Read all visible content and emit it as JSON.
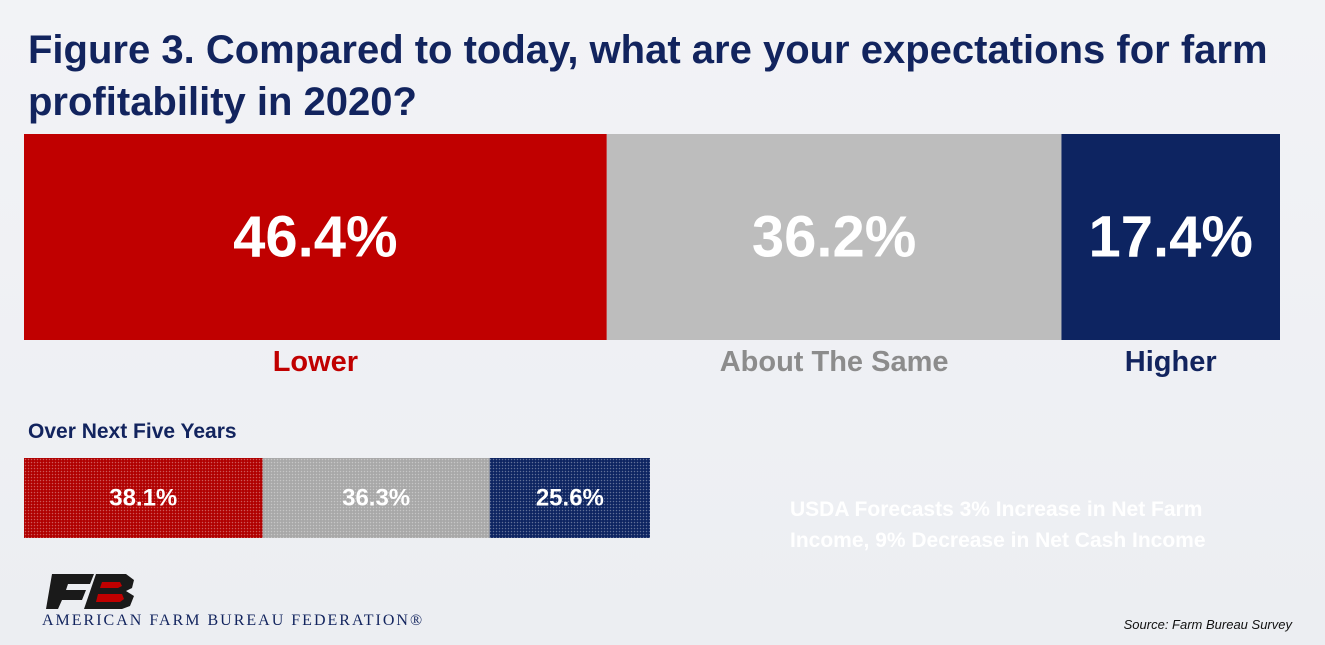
{
  "title": "Figure 3. Compared to today, what are your expectations for farm profitability in 2020?",
  "chart_data": [
    {
      "type": "bar",
      "stacked": true,
      "orientation": "horizontal",
      "title": "Figure 3. Compared to today, what are your expectations for farm profitability in 2020?",
      "categories": [
        "Lower",
        "About The Same",
        "Higher"
      ],
      "values": [
        46.4,
        36.2,
        17.4
      ],
      "value_labels": [
        "46.4%",
        "36.2%",
        "17.4%"
      ],
      "colors": [
        "#c00000",
        "#bdbdbd",
        "#0d2461"
      ],
      "label_colors": [
        "#c00000",
        "#8c8c8c",
        "#12245e"
      ]
    },
    {
      "type": "bar",
      "stacked": true,
      "orientation": "horizontal",
      "title": "Over Next Five Years",
      "categories": [
        "Lower",
        "About The Same",
        "Higher"
      ],
      "values": [
        38.1,
        36.3,
        25.6
      ],
      "value_labels": [
        "38.1%",
        "36.3%",
        "25.6%"
      ],
      "colors": [
        "#b00000",
        "#a8a8a8",
        "#0d2461"
      ],
      "pattern": "dotted"
    }
  ],
  "note": "USDA Forecasts 3% Increase in Net Farm Income, 9% Decrease in Net Cash Income",
  "logo": {
    "text": "AMERICAN FARM BUREAU FEDERATION®",
    "icon": "fb-logo-icon"
  },
  "source": "Source: Farm Bureau Survey"
}
